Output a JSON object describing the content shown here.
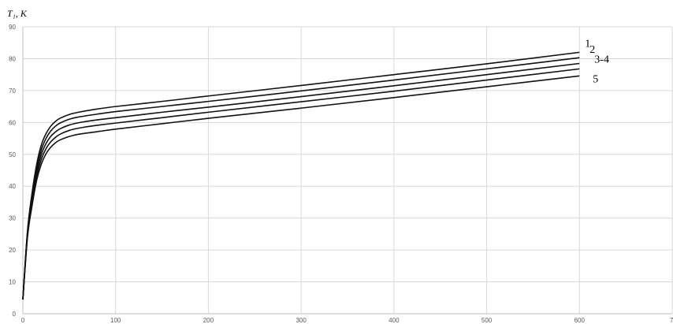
{
  "chart_data": {
    "type": "line",
    "title": "",
    "ylabel": "T₁, K",
    "xlabel": "",
    "xlim": [
      0,
      700
    ],
    "ylim": [
      0,
      90
    ],
    "x_ticks": [
      0,
      100,
      200,
      300,
      400,
      500,
      600,
      700
    ],
    "y_ticks": [
      0,
      10,
      20,
      30,
      40,
      50,
      60,
      70,
      80,
      90
    ],
    "grid": true,
    "x": [
      0,
      5,
      10,
      15,
      20,
      25,
      30,
      35,
      40,
      50,
      60,
      80,
      100,
      150,
      200,
      300,
      400,
      500,
      600
    ],
    "series": [
      {
        "name": "1",
        "values": [
          4.5,
          26,
          38,
          47,
          53,
          56.5,
          58.8,
          60.3,
          61.3,
          62.5,
          63.2,
          64.2,
          65.0,
          66.6,
          68.3,
          71.6,
          75.0,
          78.4,
          82.0
        ]
      },
      {
        "name": "2",
        "values": [
          4.5,
          25.5,
          37,
          45.8,
          51.5,
          55.0,
          57.3,
          58.8,
          59.8,
          61.0,
          61.7,
          62.6,
          63.4,
          65.0,
          66.6,
          69.9,
          73.3,
          76.8,
          80.3
        ]
      },
      {
        "name": "3-4",
        "values": [
          4.5,
          25,
          36,
          44.5,
          50,
          53.4,
          55.6,
          57.0,
          58.0,
          59.2,
          59.9,
          60.8,
          61.5,
          63.2,
          64.8,
          68.1,
          71.5,
          75.0,
          78.5
        ]
      },
      {
        "name": "",
        "values": [
          4.5,
          24.5,
          35,
          43.3,
          48.5,
          51.8,
          53.9,
          55.3,
          56.3,
          57.5,
          58.2,
          59.1,
          59.8,
          61.5,
          63.2,
          66.5,
          69.8,
          73.3,
          76.8
        ]
      },
      {
        "name": "5",
        "values": [
          4.5,
          24,
          34,
          42,
          47,
          50.2,
          52.2,
          53.6,
          54.5,
          55.6,
          56.3,
          57.1,
          57.9,
          59.6,
          61.3,
          64.5,
          67.8,
          71.2,
          74.6
        ]
      }
    ]
  }
}
